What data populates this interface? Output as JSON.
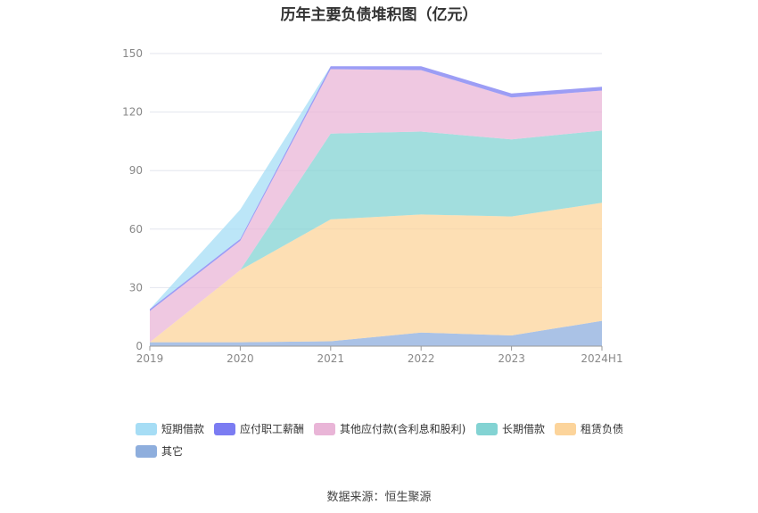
{
  "chart_data": {
    "type": "area",
    "title": "历年主要负债堆积图（亿元）",
    "categories": [
      "2019",
      "2020",
      "2021",
      "2022",
      "2023",
      "2024H1"
    ],
    "y_ticks": [
      "0",
      "30",
      "60",
      "90",
      "120",
      "150"
    ],
    "ylim": [
      0,
      150
    ],
    "stacked": true,
    "legend_position": "bottom",
    "series": [
      {
        "name": "其它",
        "color": "#8eaedd",
        "values": [
          2,
          2,
          2.5,
          7,
          5.5,
          13
        ]
      },
      {
        "name": "租赁负债",
        "color": "#fcd49b",
        "values": [
          0,
          37,
          62.5,
          60.5,
          61,
          60.5
        ]
      },
      {
        "name": "长期借款",
        "color": "#83d3d3",
        "values": [
          0,
          0,
          44,
          42.5,
          39.5,
          37
        ]
      },
      {
        "name": "其他应付款(含利息和股利)",
        "color": "#e9b5d7",
        "values": [
          16,
          15,
          33,
          31.5,
          21.5,
          20.5
        ]
      },
      {
        "name": "应付职工薪酬",
        "color": "#7b7cf2",
        "values": [
          1,
          1,
          1.5,
          2,
          2,
          2
        ]
      },
      {
        "name": "短期借款",
        "color": "#a6ddf5",
        "values": [
          0,
          15,
          0,
          0,
          0,
          0
        ]
      }
    ],
    "legend_order": [
      "短期借款",
      "应付职工薪酬",
      "其他应付款(含利息和股利)",
      "长期借款",
      "租赁负债",
      "其它"
    ]
  },
  "source": "数据来源：恒生聚源"
}
